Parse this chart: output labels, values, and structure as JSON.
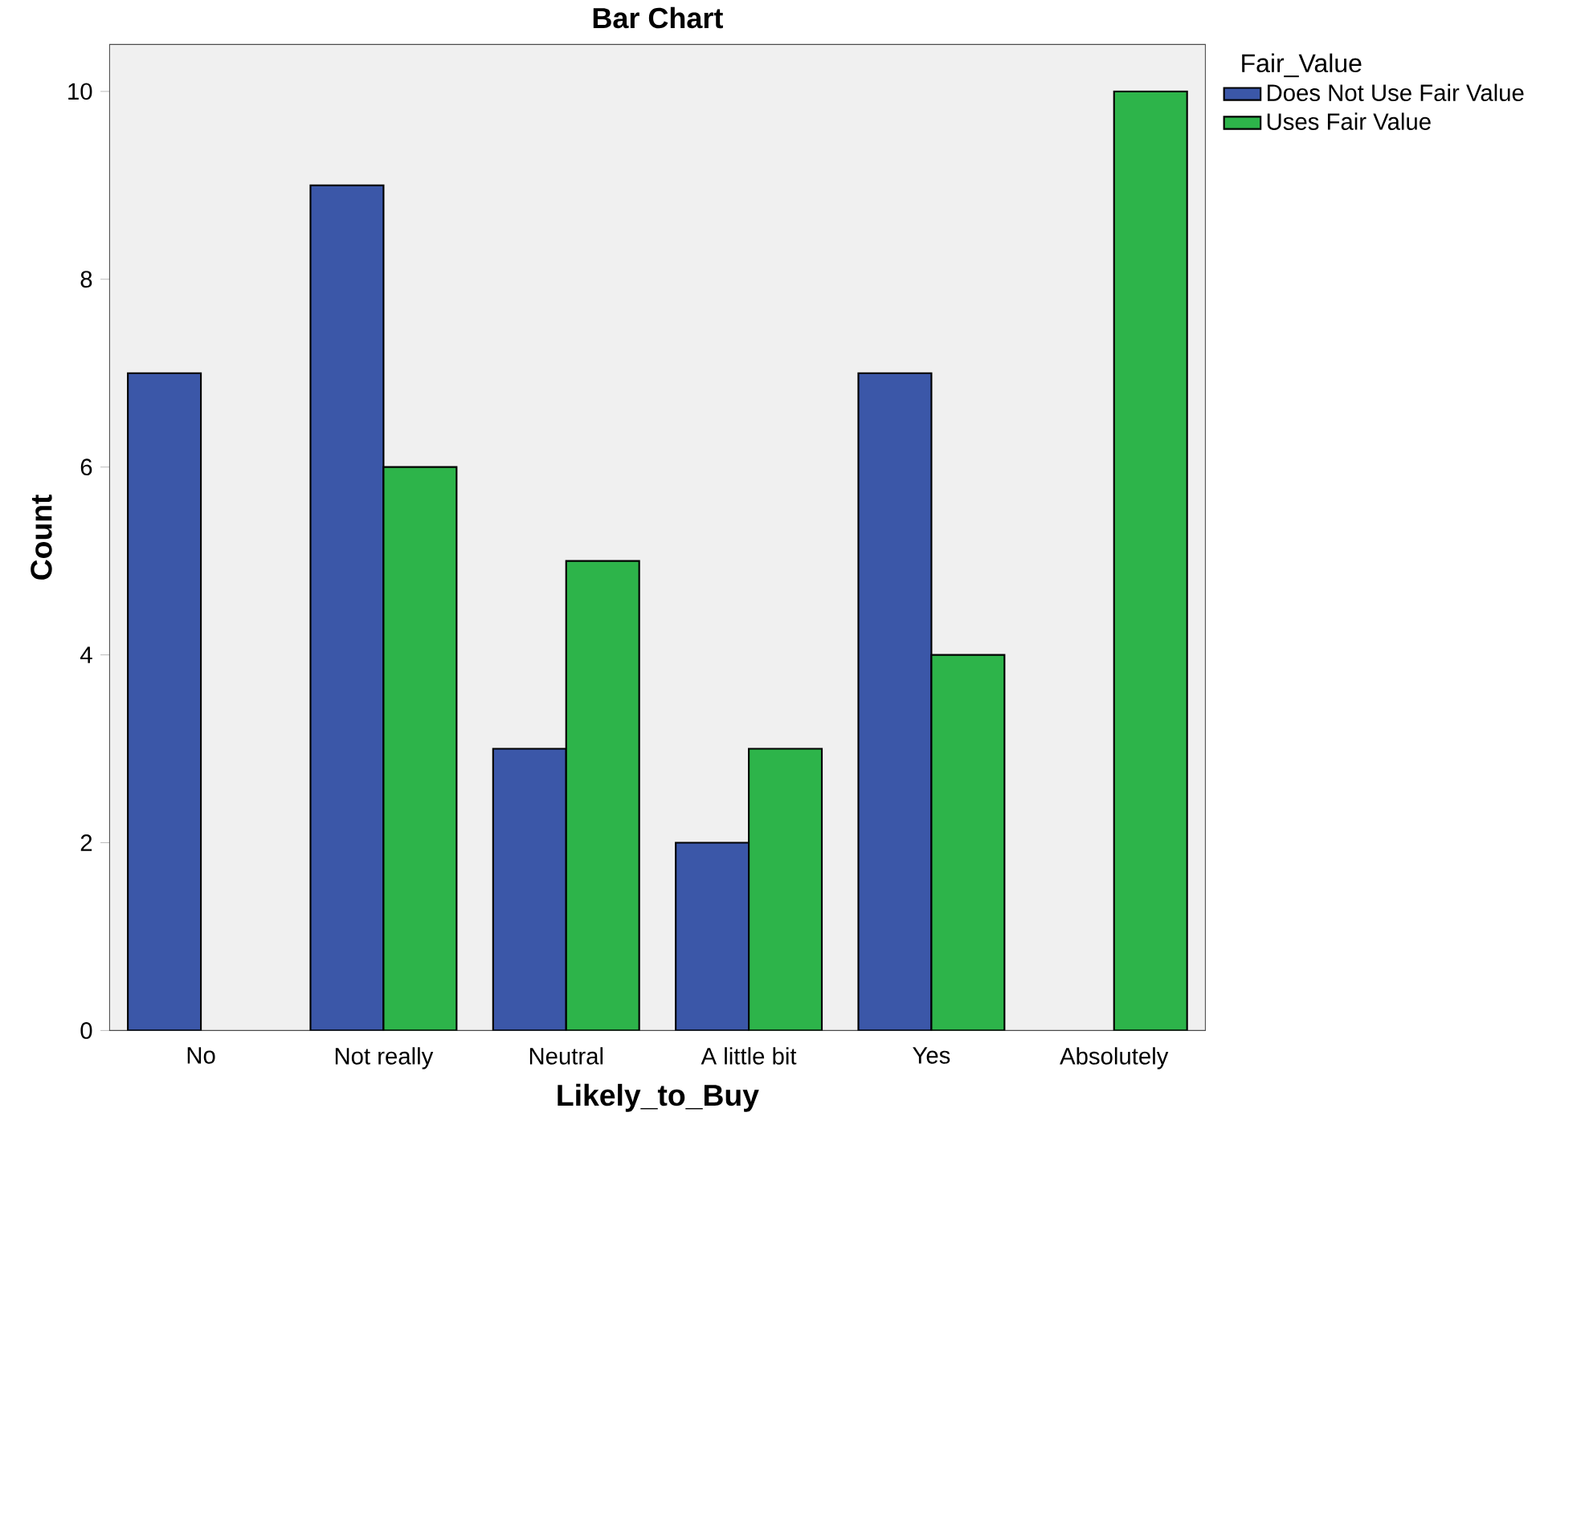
{
  "chart_data": {
    "type": "bar",
    "title": "Bar Chart",
    "xlabel": "Likely_to_Buy",
    "ylabel": "Count",
    "legend_title": "Fair_Value",
    "categories": [
      "No",
      "Not really",
      "Neutral",
      "A little bit",
      "Yes",
      "Absolutely"
    ],
    "series": [
      {
        "name": "Does Not Use Fair Value",
        "color": "#3b57a8",
        "values": [
          7,
          9,
          3,
          2,
          7,
          null
        ]
      },
      {
        "name": "Uses Fair Value",
        "color": "#2db44a",
        "values": [
          null,
          6,
          5,
          3,
          4,
          10
        ]
      }
    ],
    "ylim": [
      0,
      10.5
    ],
    "yticks": [
      0,
      2,
      4,
      6,
      8,
      10
    ],
    "legend": "right"
  }
}
